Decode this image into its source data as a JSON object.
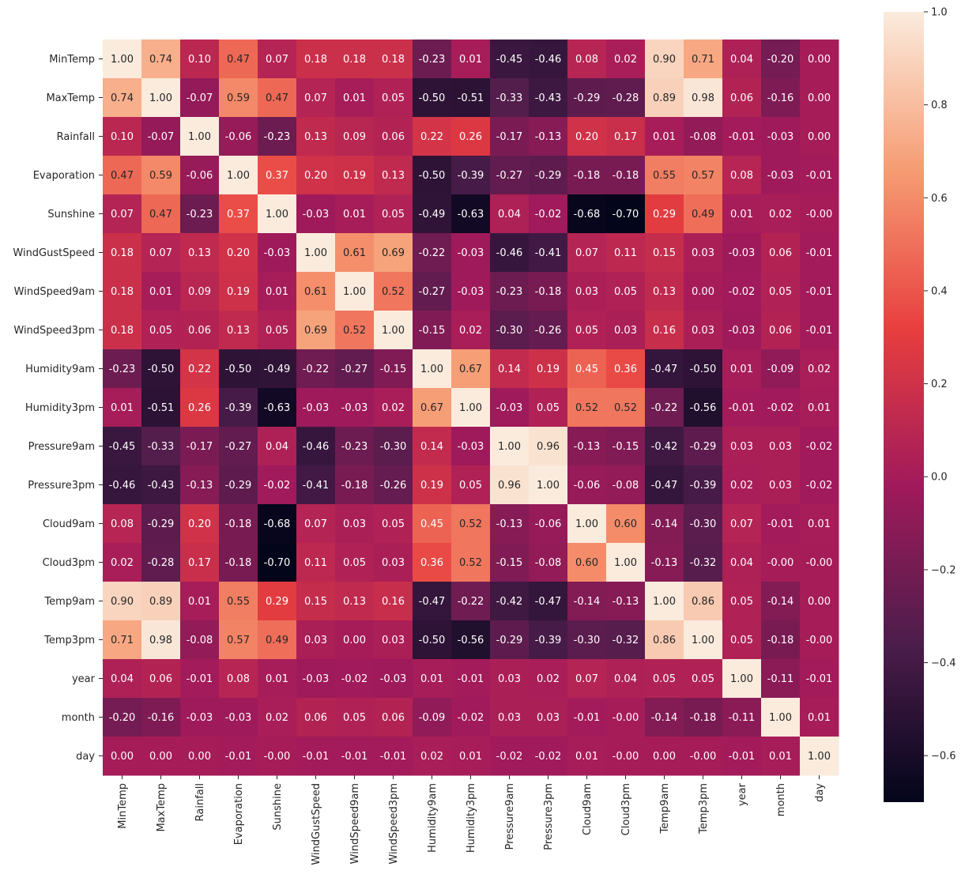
{
  "chart_data": {
    "type": "heatmap",
    "title": "",
    "xlabel": "",
    "ylabel": "",
    "value_format": "2 decimals",
    "row_labels": [
      "MinTemp",
      "MaxTemp",
      "Rainfall",
      "Evaporation",
      "Sunshine",
      "WindGustSpeed",
      "WindSpeed9am",
      "WindSpeed3pm",
      "Humidity9am",
      "Humidity3pm",
      "Pressure9am",
      "Pressure3pm",
      "Cloud9am",
      "Cloud3pm",
      "Temp9am",
      "Temp3pm",
      "year",
      "month",
      "day"
    ],
    "col_labels": [
      "MinTemp",
      "MaxTemp",
      "Rainfall",
      "Evaporation",
      "Sunshine",
      "WindGustSpeed",
      "WindSpeed9am",
      "WindSpeed3pm",
      "Humidity9am",
      "Humidity3pm",
      "Pressure9am",
      "Pressure3pm",
      "Cloud9am",
      "Cloud3pm",
      "Temp9am",
      "Temp3pm",
      "year",
      "month",
      "day"
    ],
    "values": [
      [
        1.0,
        0.74,
        0.1,
        0.47,
        0.07,
        0.18,
        0.18,
        0.18,
        -0.23,
        0.01,
        -0.45,
        -0.46,
        0.08,
        0.02,
        0.9,
        0.71,
        0.04,
        -0.2,
        0.0
      ],
      [
        0.74,
        1.0,
        -0.07,
        0.59,
        0.47,
        0.07,
        0.01,
        0.05,
        -0.5,
        -0.51,
        -0.33,
        -0.43,
        -0.29,
        -0.28,
        0.89,
        0.98,
        0.06,
        -0.16,
        0.0
      ],
      [
        0.1,
        -0.07,
        1.0,
        -0.06,
        -0.23,
        0.13,
        0.09,
        0.06,
        0.22,
        0.26,
        -0.17,
        -0.13,
        0.2,
        0.17,
        0.01,
        -0.08,
        -0.01,
        -0.03,
        0.0
      ],
      [
        0.47,
        0.59,
        -0.06,
        1.0,
        0.37,
        0.2,
        0.19,
        0.13,
        -0.5,
        -0.39,
        -0.27,
        -0.29,
        -0.18,
        -0.18,
        0.55,
        0.57,
        0.08,
        -0.03,
        -0.01
      ],
      [
        0.07,
        0.47,
        -0.23,
        0.37,
        1.0,
        -0.03,
        0.01,
        0.05,
        -0.49,
        -0.63,
        0.04,
        -0.02,
        -0.68,
        -0.7,
        0.29,
        0.49,
        0.01,
        0.02,
        -0.0
      ],
      [
        0.18,
        0.07,
        0.13,
        0.2,
        -0.03,
        1.0,
        0.61,
        0.69,
        -0.22,
        -0.03,
        -0.46,
        -0.41,
        0.07,
        0.11,
        0.15,
        0.03,
        -0.03,
        0.06,
        -0.01
      ],
      [
        0.18,
        0.01,
        0.09,
        0.19,
        0.01,
        0.61,
        1.0,
        0.52,
        -0.27,
        -0.03,
        -0.23,
        -0.18,
        0.03,
        0.05,
        0.13,
        0.0,
        -0.02,
        0.05,
        -0.01
      ],
      [
        0.18,
        0.05,
        0.06,
        0.13,
        0.05,
        0.69,
        0.52,
        1.0,
        -0.15,
        0.02,
        -0.3,
        -0.26,
        0.05,
        0.03,
        0.16,
        0.03,
        -0.03,
        0.06,
        -0.01
      ],
      [
        -0.23,
        -0.5,
        0.22,
        -0.5,
        -0.49,
        -0.22,
        -0.27,
        -0.15,
        1.0,
        0.67,
        0.14,
        0.19,
        0.45,
        0.36,
        -0.47,
        -0.5,
        0.01,
        -0.09,
        0.02
      ],
      [
        0.01,
        -0.51,
        0.26,
        -0.39,
        -0.63,
        -0.03,
        -0.03,
        0.02,
        0.67,
        1.0,
        -0.03,
        0.05,
        0.52,
        0.52,
        -0.22,
        -0.56,
        -0.01,
        -0.02,
        0.01
      ],
      [
        -0.45,
        -0.33,
        -0.17,
        -0.27,
        0.04,
        -0.46,
        -0.23,
        -0.3,
        0.14,
        -0.03,
        1.0,
        0.96,
        -0.13,
        -0.15,
        -0.42,
        -0.29,
        0.03,
        0.03,
        -0.02
      ],
      [
        -0.46,
        -0.43,
        -0.13,
        -0.29,
        -0.02,
        -0.41,
        -0.18,
        -0.26,
        0.19,
        0.05,
        0.96,
        1.0,
        -0.06,
        -0.08,
        -0.47,
        -0.39,
        0.02,
        0.03,
        -0.02
      ],
      [
        0.08,
        -0.29,
        0.2,
        -0.18,
        -0.68,
        0.07,
        0.03,
        0.05,
        0.45,
        0.52,
        -0.13,
        -0.06,
        1.0,
        0.6,
        -0.14,
        -0.3,
        0.07,
        -0.01,
        0.01
      ],
      [
        0.02,
        -0.28,
        0.17,
        -0.18,
        -0.7,
        0.11,
        0.05,
        0.03,
        0.36,
        0.52,
        -0.15,
        -0.08,
        0.6,
        1.0,
        -0.13,
        -0.32,
        0.04,
        -0.0,
        -0.0
      ],
      [
        0.9,
        0.89,
        0.01,
        0.55,
        0.29,
        0.15,
        0.13,
        0.16,
        -0.47,
        -0.22,
        -0.42,
        -0.47,
        -0.14,
        -0.13,
        1.0,
        0.86,
        0.05,
        -0.14,
        0.0
      ],
      [
        0.71,
        0.98,
        -0.08,
        0.57,
        0.49,
        0.03,
        0.0,
        0.03,
        -0.5,
        -0.56,
        -0.29,
        -0.39,
        -0.3,
        -0.32,
        0.86,
        1.0,
        0.05,
        -0.18,
        -0.0
      ],
      [
        0.04,
        0.06,
        -0.01,
        0.08,
        0.01,
        -0.03,
        -0.02,
        -0.03,
        0.01,
        -0.01,
        0.03,
        0.02,
        0.07,
        0.04,
        0.05,
        0.05,
        1.0,
        -0.11,
        -0.01
      ],
      [
        -0.2,
        -0.16,
        -0.03,
        -0.03,
        0.02,
        0.06,
        0.05,
        0.06,
        -0.09,
        -0.02,
        0.03,
        0.03,
        -0.01,
        -0.0,
        -0.14,
        -0.18,
        -0.11,
        1.0,
        0.01
      ],
      [
        0.0,
        0.0,
        0.0,
        -0.01,
        -0.0,
        -0.01,
        -0.01,
        -0.01,
        0.02,
        0.01,
        -0.02,
        -0.02,
        0.01,
        -0.0,
        0.0,
        -0.0,
        -0.01,
        0.01,
        1.0
      ]
    ],
    "colorbar": {
      "min": -0.7,
      "max": 1.0,
      "ticks": [
        1.0,
        0.8,
        0.6,
        0.4,
        0.2,
        0.0,
        -0.2,
        -0.4,
        -0.6
      ],
      "tick_labels": [
        "1.0",
        "0.8",
        "0.6",
        "0.4",
        "0.2",
        "0.0",
        "−0.2",
        "−0.4",
        "−0.6"
      ],
      "colormap": "rocket",
      "colormap_stops": [
        "#03051a",
        "#4c1d4b",
        "#a11a5b",
        "#e83f3f",
        "#f69c73",
        "#faebdd"
      ]
    },
    "annotation_colors": {
      "light_text": "#ffffff",
      "dark_text": "#262626"
    }
  }
}
